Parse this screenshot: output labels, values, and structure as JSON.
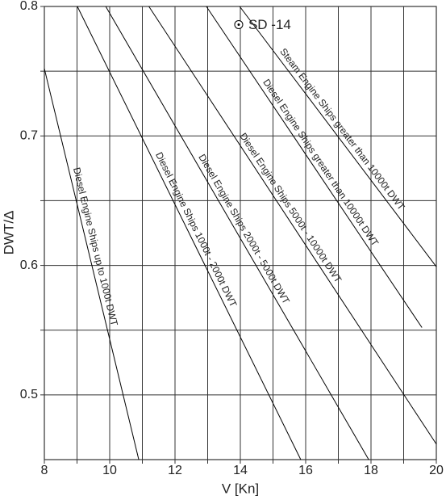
{
  "chart_data": {
    "type": "line",
    "x_label": "V [Kn]",
    "y_label": "DWT/Δ",
    "xlim": [
      8,
      20
    ],
    "ylim": [
      0.45,
      0.8
    ],
    "xticks": [
      8,
      10,
      12,
      14,
      16,
      18,
      20
    ],
    "yticks": [
      0.5,
      0.6,
      0.7,
      0.8
    ],
    "x_minor_ticks": [
      9,
      11,
      13,
      15,
      17,
      19
    ],
    "y_minor_ticks": [
      0.55,
      0.65,
      0.75
    ],
    "grid": true,
    "color": "#000000",
    "series": [
      {
        "name": "Diesel Engine Ships up to 1000t DWT",
        "x": [
          8,
          10.89
        ],
        "values": [
          0.752,
          0.45
        ]
      },
      {
        "name": "Diesel Engine Ships 1000t - 2000t DWT",
        "x": [
          9.01,
          15.85
        ],
        "values": [
          0.8,
          0.45
        ]
      },
      {
        "name": "Diesel Engine Ships 2000t - 5000t DWT",
        "x": [
          9.88,
          17.93
        ],
        "values": [
          0.8,
          0.45
        ]
      },
      {
        "name": "Diesel Engine Ships 5000t - 10000t DWT",
        "x": [
          11.2,
          20
        ],
        "values": [
          0.8,
          0.462
        ]
      },
      {
        "name": "Diesel Engine Ships greater than 10000t DWT",
        "x": [
          12.96,
          19.56
        ],
        "values": [
          0.8,
          0.552
        ]
      },
      {
        "name": "Steam Engine Ships greater than 10000t DWT",
        "x": [
          13.98,
          20
        ],
        "values": [
          0.8,
          0.599
        ]
      }
    ],
    "point": {
      "label": "SD -14",
      "x": 13.95,
      "y": 0.786
    }
  }
}
